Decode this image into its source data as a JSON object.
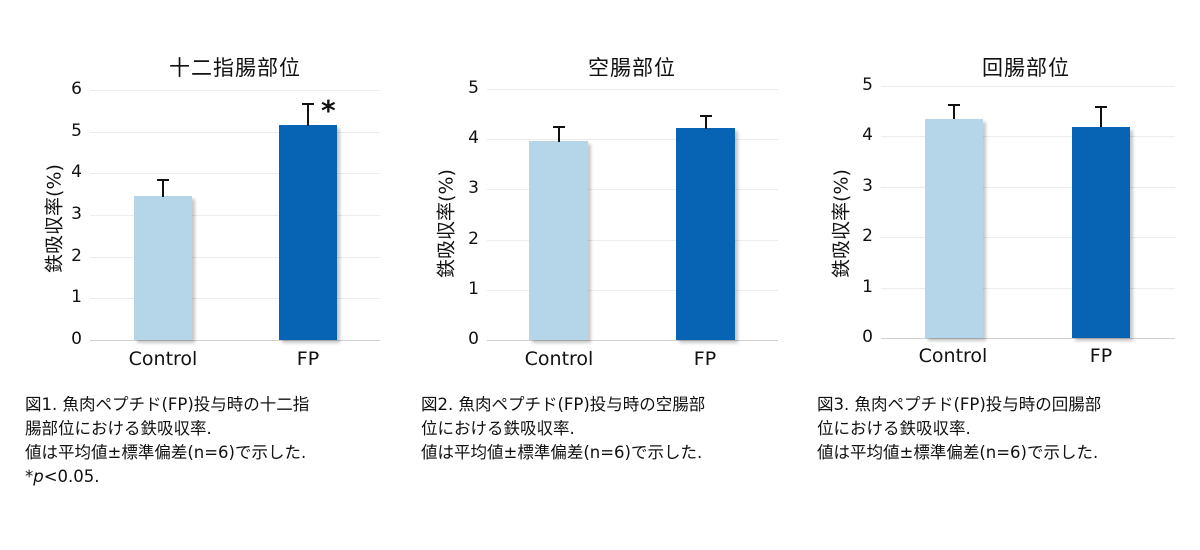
{
  "colors": {
    "control": "#b4d6e8",
    "fp": "#0763b3",
    "grid": "#ececec",
    "axis": "#d0d0d0"
  },
  "charts": [
    {
      "title": "十二指腸部位",
      "ylabel": "鉄吸収率(%)",
      "yticks": [
        "0",
        "1",
        "2",
        "3",
        "4",
        "5",
        "6"
      ],
      "categories": [
        "Control",
        "FP"
      ],
      "significance": "*",
      "caption": {
        "line1": "図1. 魚肉ペプチド(FP)投与時の十二指",
        "line2": "腸部位における鉄吸収率.",
        "line3": "値は平均値±標準偏差(n=6)で示した.",
        "line4_star": "*",
        "line4_p": "p",
        "line4_rest": "<0.05."
      }
    },
    {
      "title": "空腸部位",
      "ylabel": "鉄吸収率(%)",
      "yticks": [
        "0",
        "1",
        "2",
        "3",
        "4",
        "5"
      ],
      "categories": [
        "Control",
        "FP"
      ],
      "caption": {
        "line1": "図2. 魚肉ペプチド(FP)投与時の空腸部",
        "line2": "位における鉄吸収率.",
        "line3": "値は平均値±標準偏差(n=6)で示した."
      }
    },
    {
      "title": "回腸部位",
      "ylabel": "鉄吸収率(%)",
      "yticks": [
        "0",
        "1",
        "2",
        "3",
        "4",
        "5"
      ],
      "categories": [
        "Control",
        "FP"
      ],
      "caption": {
        "line1": "図3. 魚肉ペプチド(FP)投与時の回腸部",
        "line2": "位における鉄吸収率.",
        "line3": "値は平均値±標準偏差(n=6)で示した."
      }
    }
  ],
  "chart_data": [
    {
      "type": "bar",
      "title": "十二指腸部位",
      "xlabel": "",
      "ylabel": "鉄吸収率(%)",
      "categories": [
        "Control",
        "FP"
      ],
      "values": [
        3.45,
        5.15
      ],
      "error_bars": [
        0.42,
        0.54
      ],
      "ylim": [
        0,
        6
      ],
      "yticks": [
        0,
        1,
        2,
        3,
        4,
        5,
        6
      ],
      "grid": true,
      "annotations": [
        {
          "category": "FP",
          "text": "*"
        }
      ],
      "bar_colors": [
        "#b4d6e8",
        "#0763b3"
      ]
    },
    {
      "type": "bar",
      "title": "空腸部位",
      "xlabel": "",
      "ylabel": "鉄吸収率(%)",
      "categories": [
        "Control",
        "FP"
      ],
      "values": [
        3.96,
        4.22
      ],
      "error_bars": [
        0.31,
        0.27
      ],
      "ylim": [
        0,
        5
      ],
      "yticks": [
        0,
        1,
        2,
        3,
        4,
        5
      ],
      "grid": true,
      "bar_colors": [
        "#b4d6e8",
        "#0763b3"
      ]
    },
    {
      "type": "bar",
      "title": "回腸部位",
      "xlabel": "",
      "ylabel": "鉄吸収率(%)",
      "categories": [
        "Control",
        "FP"
      ],
      "values": [
        4.35,
        4.18
      ],
      "error_bars": [
        0.3,
        0.42
      ],
      "ylim": [
        0,
        5
      ],
      "yticks": [
        0,
        1,
        2,
        3,
        4,
        5
      ],
      "grid": true,
      "bar_colors": [
        "#b4d6e8",
        "#0763b3"
      ]
    }
  ]
}
